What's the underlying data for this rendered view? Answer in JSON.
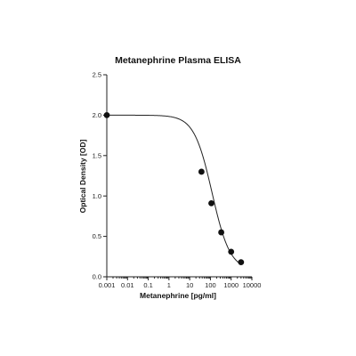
{
  "chart_data": {
    "type": "scatter",
    "title": "Metanephrine Plasma ELISA",
    "xlabel": "Metanephrine [pg/ml]",
    "ylabel": "Optical Density [OD]",
    "x_scale": "log",
    "xlim": [
      0.001,
      10000
    ],
    "ylim": [
      0,
      2.5
    ],
    "x_ticks": [
      0.001,
      0.01,
      0.1,
      1,
      10,
      100,
      1000,
      10000
    ],
    "x_tick_labels": [
      "0.001",
      "0.01",
      "0.1",
      "1",
      "10",
      "100",
      "1000",
      "10000"
    ],
    "y_ticks": [
      0,
      0.5,
      1.0,
      1.5,
      2.0,
      2.5
    ],
    "y_tick_labels": [
      "0.0",
      "0.5",
      "1.0",
      "1.5",
      "2.0",
      "2.5"
    ],
    "grid": false,
    "legend": "none",
    "points": [
      {
        "x": 0.001,
        "y": 2.0
      },
      {
        "x": 37,
        "y": 1.3
      },
      {
        "x": 111,
        "y": 0.91
      },
      {
        "x": 333,
        "y": 0.55
      },
      {
        "x": 1000,
        "y": 0.31
      },
      {
        "x": 3000,
        "y": 0.18
      }
    ],
    "fit_curve": {
      "model": "4PL",
      "top": 2.0,
      "bottom": 0.08,
      "ec50": 120,
      "hill": 1.0
    },
    "colors": {
      "points": "#111111",
      "curve": "#222222",
      "axes": "#222222"
    }
  }
}
